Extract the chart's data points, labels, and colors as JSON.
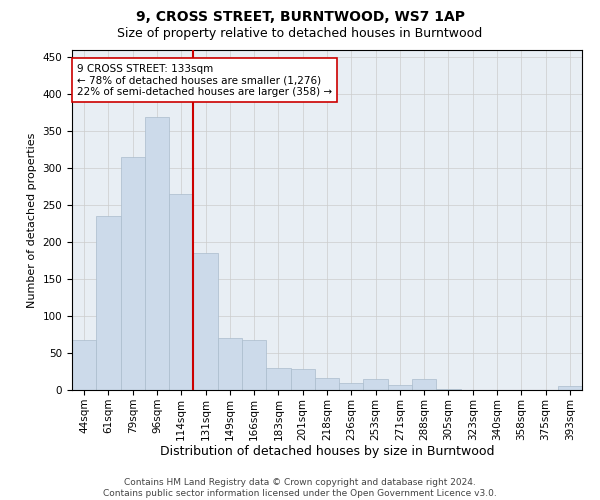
{
  "title_line1": "9, CROSS STREET, BURNTWOOD, WS7 1AP",
  "title_line2": "Size of property relative to detached houses in Burntwood",
  "xlabel": "Distribution of detached houses by size in Burntwood",
  "ylabel": "Number of detached properties",
  "categories": [
    "44sqm",
    "61sqm",
    "79sqm",
    "96sqm",
    "114sqm",
    "131sqm",
    "149sqm",
    "166sqm",
    "183sqm",
    "201sqm",
    "218sqm",
    "236sqm",
    "253sqm",
    "271sqm",
    "288sqm",
    "305sqm",
    "323sqm",
    "340sqm",
    "358sqm",
    "375sqm",
    "393sqm"
  ],
  "values": [
    67,
    235,
    315,
    370,
    265,
    185,
    70,
    68,
    30,
    28,
    16,
    10,
    15,
    7,
    15,
    2,
    0,
    0,
    0,
    0,
    5
  ],
  "bar_color": "#ccdaea",
  "bar_edgecolor": "#aabccc",
  "vline_color": "#cc0000",
  "annotation_text": "9 CROSS STREET: 133sqm\n← 78% of detached houses are smaller (1,276)\n22% of semi-detached houses are larger (358) →",
  "annotation_box_color": "white",
  "annotation_box_edgecolor": "#cc0000",
  "ylim": [
    0,
    460
  ],
  "yticks": [
    0,
    50,
    100,
    150,
    200,
    250,
    300,
    350,
    400,
    450
  ],
  "grid_color": "#cccccc",
  "bg_color": "#e8eef4",
  "footer_line1": "Contains HM Land Registry data © Crown copyright and database right 2024.",
  "footer_line2": "Contains public sector information licensed under the Open Government Licence v3.0.",
  "title_fontsize": 10,
  "subtitle_fontsize": 9,
  "xlabel_fontsize": 9,
  "ylabel_fontsize": 8,
  "tick_fontsize": 7.5,
  "footer_fontsize": 6.5,
  "annotation_fontsize": 7.5
}
